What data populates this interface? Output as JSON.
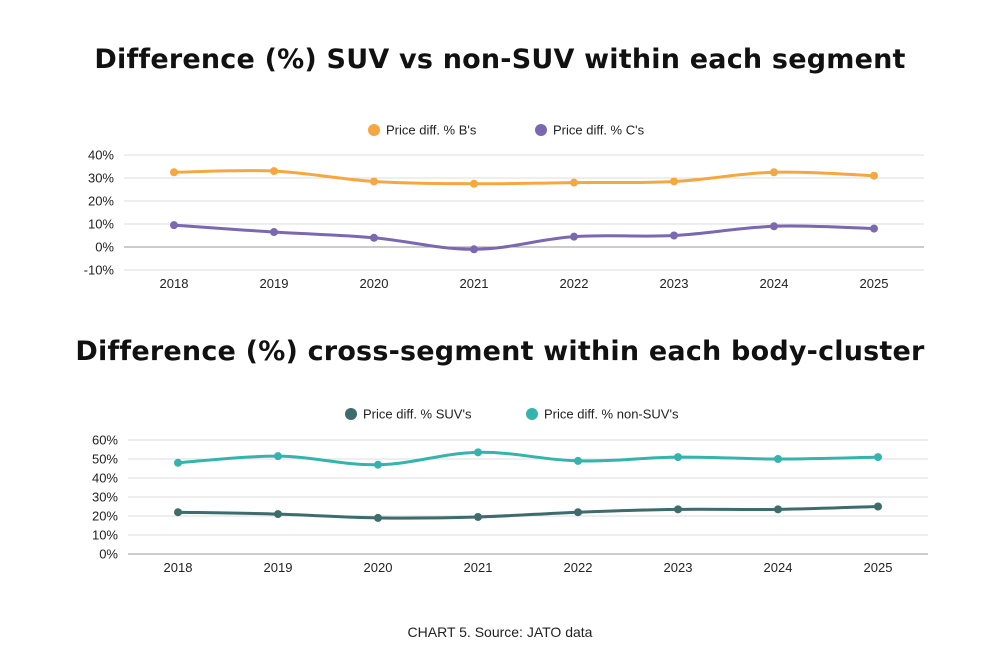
{
  "caption": "CHART 5. Source: JATO data",
  "chart_data": [
    {
      "type": "line",
      "title": "Difference (%) SUV vs non-SUV within each segment",
      "categories": [
        "2018",
        "2019",
        "2020",
        "2021",
        "2022",
        "2023",
        "2024",
        "2025"
      ],
      "series": [
        {
          "name": "Price diff. % B's",
          "color": "#f5a742",
          "values": [
            32.5,
            33,
            28.5,
            27.5,
            28,
            28.5,
            32.5,
            31
          ]
        },
        {
          "name": "Price diff. % C's",
          "color": "#7b68b0",
          "values": [
            9.5,
            6.5,
            4,
            -1,
            4.5,
            5,
            9,
            8
          ]
        }
      ],
      "ylim": [
        -10,
        40
      ],
      "yticks": [
        -10,
        0,
        10,
        20,
        30,
        40
      ],
      "ytick_labels": [
        "-10%",
        "0%",
        "10%",
        "20%",
        "30%",
        "40%"
      ],
      "legend": "top",
      "grid": true
    },
    {
      "type": "line",
      "title": "Difference (%) cross-segment within each body-cluster",
      "categories": [
        "2018",
        "2019",
        "2020",
        "2021",
        "2022",
        "2023",
        "2024",
        "2025"
      ],
      "series": [
        {
          "name": "Price diff. % SUV's",
          "color": "#3e6b6b",
          "values": [
            22,
            21,
            19,
            19.5,
            22,
            23.5,
            23.5,
            25
          ]
        },
        {
          "name": "Price diff. % non-SUV's",
          "color": "#35b3ad",
          "values": [
            48,
            51.5,
            47,
            53.5,
            49,
            51,
            50,
            51
          ]
        }
      ],
      "ylim": [
        0,
        60
      ],
      "yticks": [
        0,
        10,
        20,
        30,
        40,
        50,
        60
      ],
      "ytick_labels": [
        "0%",
        "10%",
        "20%",
        "30%",
        "40%",
        "50%",
        "60%"
      ],
      "legend": "top",
      "grid": true
    }
  ]
}
